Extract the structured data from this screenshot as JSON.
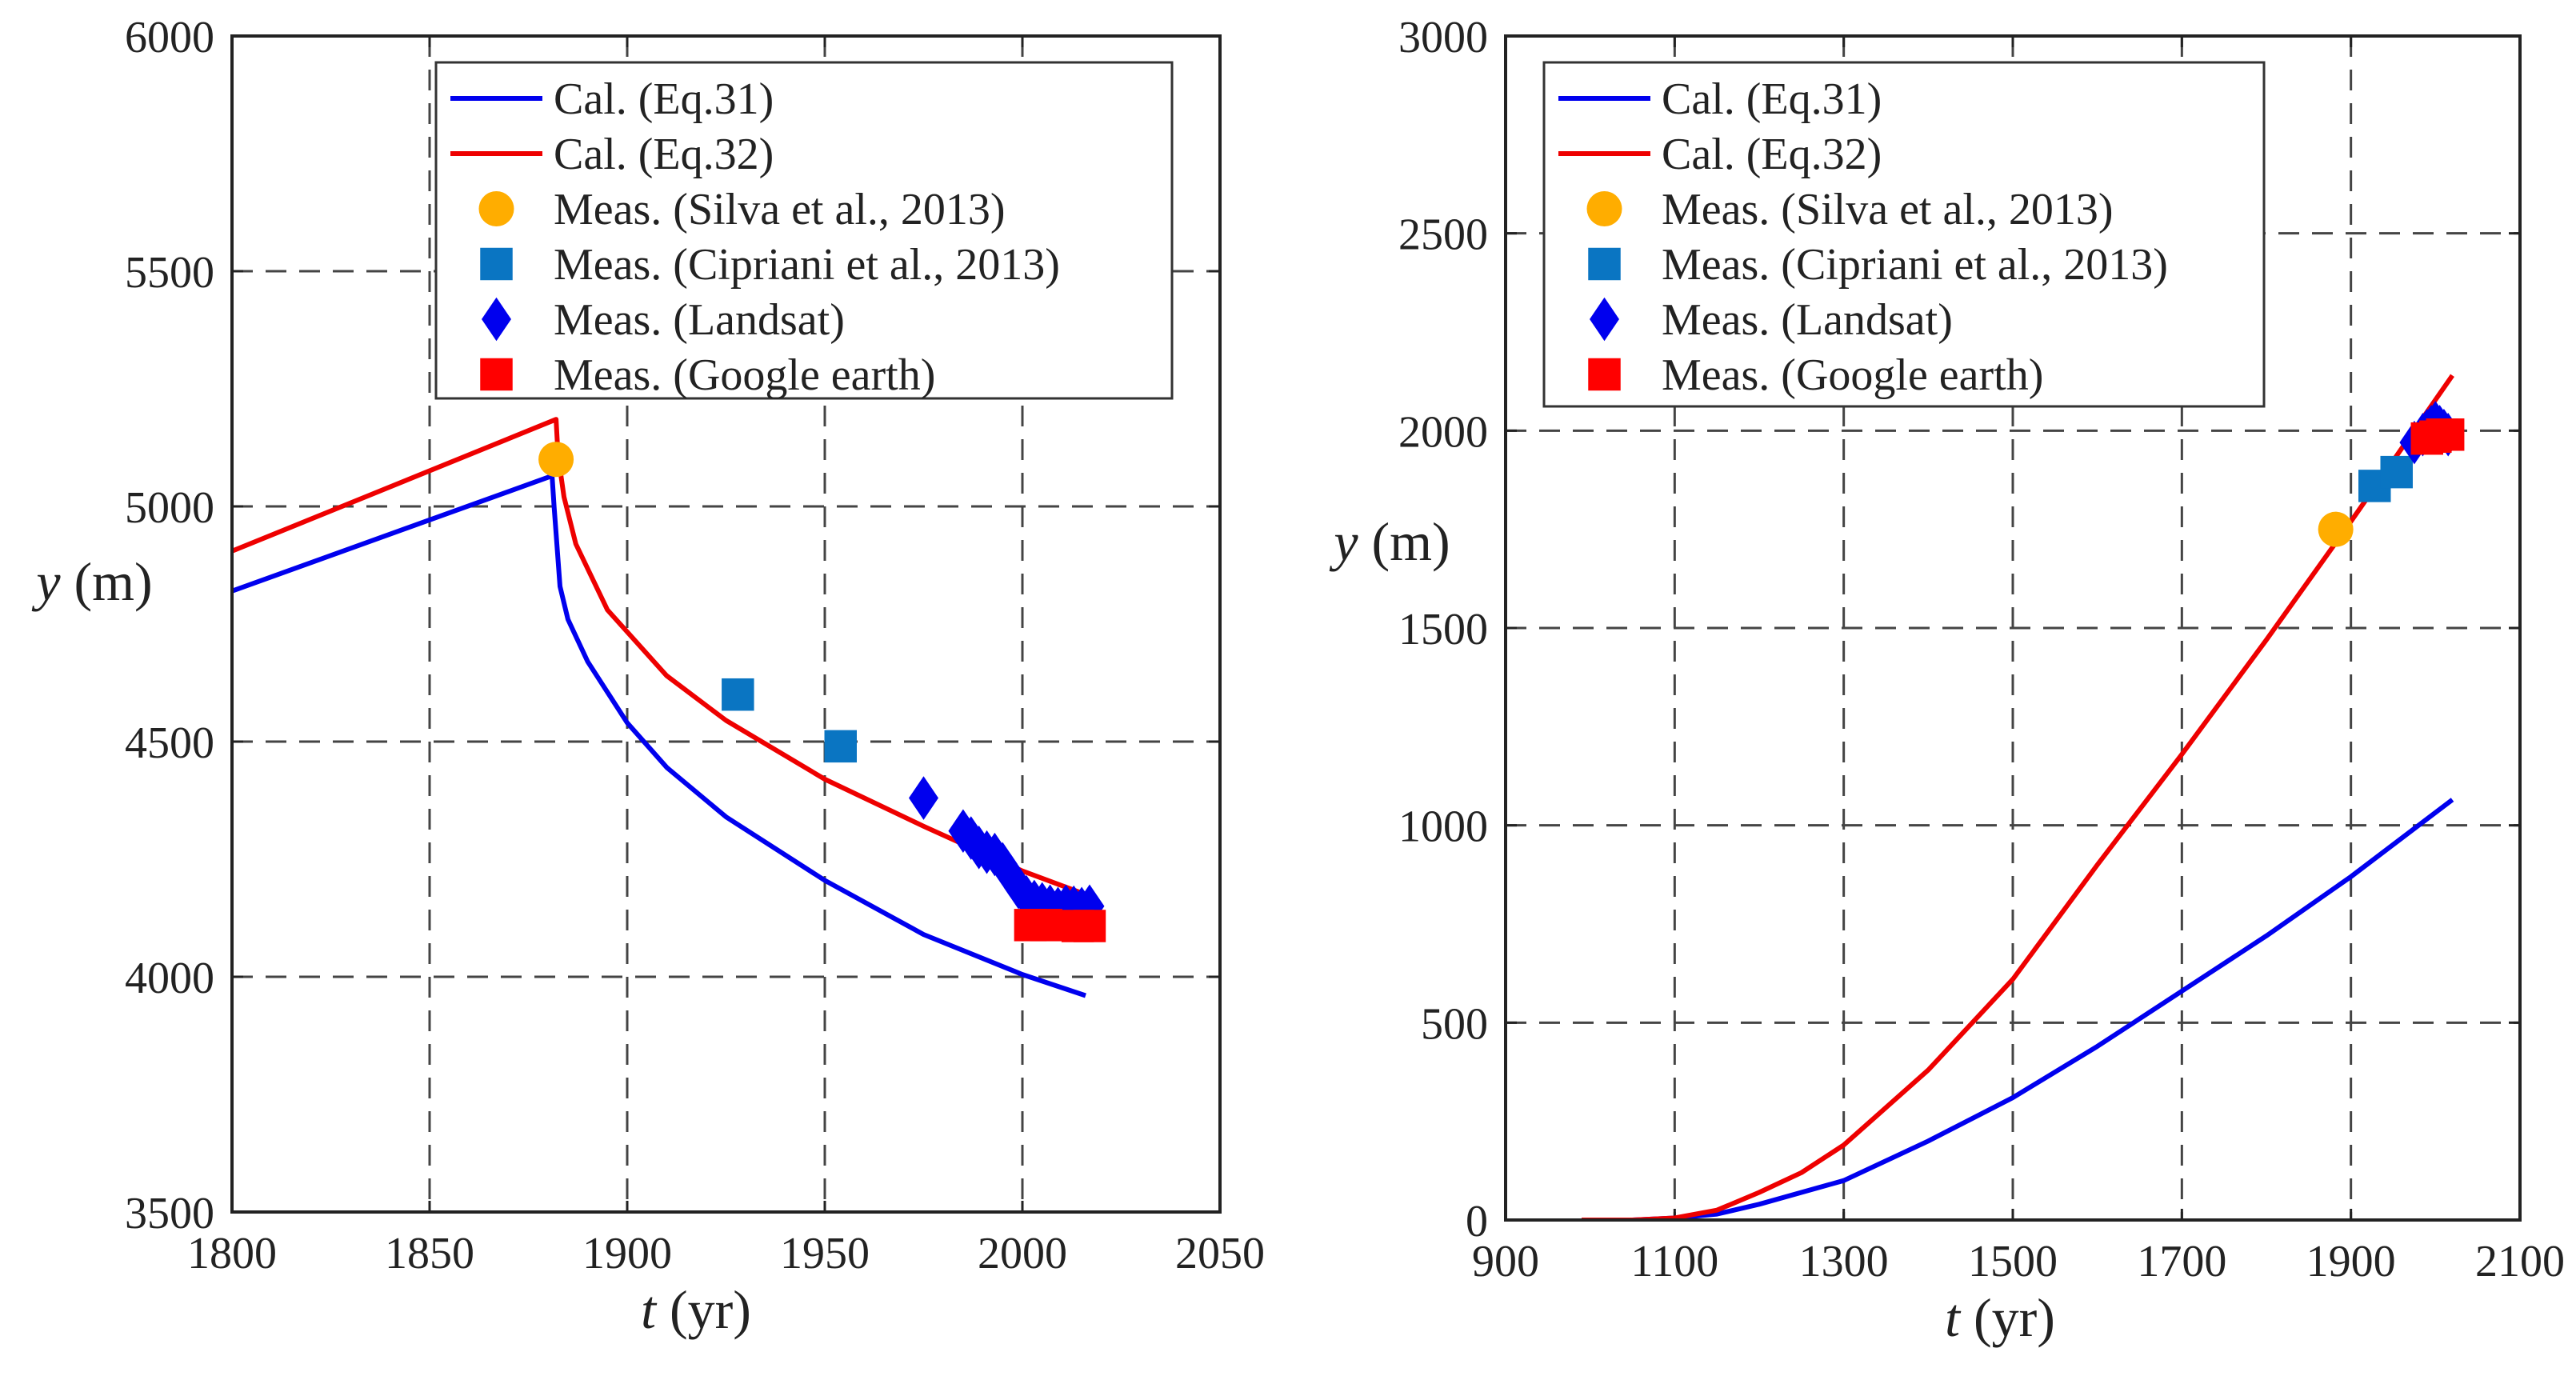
{
  "colors": {
    "eq31": "#0000ee",
    "eq32": "#ee0000",
    "silva": "#ffad00",
    "cipriani": "#0a75c2",
    "landsat": "#0000ee",
    "google": "#ff0000"
  },
  "chart_data": [
    {
      "type": "line",
      "title": "",
      "xlabel_italic": "t",
      "xlabel_unit": " (yr)",
      "ylabel_italic": "y",
      "ylabel_unit": " (m)",
      "xlim": [
        1800,
        2050
      ],
      "ylim": [
        3500,
        6000
      ],
      "xticks": [
        1800,
        1850,
        1900,
        1950,
        2000,
        2050
      ],
      "yticks": [
        3500,
        4000,
        4500,
        5000,
        5500,
        6000
      ],
      "grid": true,
      "legend_position": "top-right",
      "legend": [
        {
          "label": "Cal. (Eq.31)",
          "kind": "line",
          "color_key": "eq31"
        },
        {
          "label": "Cal. (Eq.32)",
          "kind": "line",
          "color_key": "eq32"
        },
        {
          "label": "Meas. (Silva et al., 2013)",
          "kind": "circle",
          "color_key": "silva"
        },
        {
          "label": "Meas. (Cipriani et al., 2013)",
          "kind": "square",
          "color_key": "cipriani"
        },
        {
          "label": "Meas. (Landsat)",
          "kind": "diamond",
          "color_key": "landsat"
        },
        {
          "label": "Meas. (Google earth)",
          "kind": "square",
          "color_key": "google"
        }
      ],
      "series": [
        {
          "name": "Cal. (Eq.31)",
          "kind": "line",
          "color_key": "eq31",
          "x": [
            1800,
            1881,
            1881.5,
            1883,
            1885,
            1890,
            1900,
            1910,
            1925,
            1950,
            1975,
            2000,
            2016
          ],
          "y": [
            4820,
            5065,
            5000,
            4830,
            4760,
            4670,
            4540,
            4445,
            4340,
            4205,
            4090,
            4005,
            3960
          ]
        },
        {
          "name": "Cal. (Eq.32)",
          "kind": "line",
          "color_key": "eq32",
          "x": [
            1800,
            1882,
            1882.5,
            1884,
            1887,
            1895,
            1910,
            1925,
            1950,
            1975,
            2000,
            2016
          ],
          "y": [
            4905,
            5185,
            5110,
            5020,
            4920,
            4780,
            4640,
            4545,
            4420,
            4320,
            4225,
            4175
          ]
        },
        {
          "name": "Meas. (Silva et al., 2013)",
          "kind": "circle",
          "color_key": "silva",
          "x": [
            1882
          ],
          "y": [
            5100
          ]
        },
        {
          "name": "Meas. (Cipriani et al., 2013)",
          "kind": "square",
          "color_key": "cipriani",
          "x": [
            1928,
            1954
          ],
          "y": [
            4600,
            4490
          ]
        },
        {
          "name": "Meas. (Landsat)",
          "kind": "diamond",
          "color_key": "landsat",
          "x": [
            1975,
            1985,
            1987,
            1989,
            1991,
            1993,
            1995,
            1997,
            1999,
            2001,
            2003,
            2005,
            2007,
            2009,
            2011,
            2013,
            2015,
            2017
          ],
          "y": [
            4380,
            4310,
            4295,
            4275,
            4265,
            4260,
            4240,
            4215,
            4190,
            4170,
            4160,
            4155,
            4150,
            4145,
            4150,
            4148,
            4145,
            4150
          ]
        },
        {
          "name": "Meas. (Google earth)",
          "kind": "square",
          "color_key": "google",
          "x": [
            2002,
            2006,
            2014,
            2017
          ],
          "y": [
            4110,
            4110,
            4108,
            4108
          ]
        }
      ]
    },
    {
      "type": "line",
      "title": "",
      "xlabel_italic": "t",
      "xlabel_unit": " (yr)",
      "ylabel_italic": "y",
      "ylabel_unit": " (m)",
      "xlim": [
        900,
        2100
      ],
      "ylim": [
        0,
        3000
      ],
      "xticks": [
        900,
        1100,
        1300,
        1500,
        1700,
        1900,
        2100
      ],
      "yticks": [
        0,
        500,
        1000,
        1500,
        2000,
        2500,
        3000
      ],
      "grid": true,
      "legend_position": "top-left",
      "legend": [
        {
          "label": "Cal. (Eq.31)",
          "kind": "line",
          "color_key": "eq31"
        },
        {
          "label": "Cal. (Eq.32)",
          "kind": "line",
          "color_key": "eq32"
        },
        {
          "label": "Meas. (Silva et al., 2013)",
          "kind": "circle",
          "color_key": "silva"
        },
        {
          "label": "Meas. (Cipriani et al., 2013)",
          "kind": "square",
          "color_key": "cipriani"
        },
        {
          "label": "Meas. (Landsat)",
          "kind": "diamond",
          "color_key": "landsat"
        },
        {
          "label": "Meas. (Google earth)",
          "kind": "square",
          "color_key": "google"
        }
      ],
      "series": [
        {
          "name": "Cal. (Eq.31)",
          "kind": "line",
          "color_key": "eq31",
          "x": [
            990,
            1050,
            1100,
            1150,
            1200,
            1300,
            1400,
            1500,
            1600,
            1700,
            1800,
            1900,
            2020
          ],
          "y": [
            0,
            0,
            5,
            15,
            40,
            100,
            200,
            310,
            440,
            580,
            720,
            870,
            1065
          ]
        },
        {
          "name": "Cal. (Eq.32)",
          "kind": "line",
          "color_key": "eq32",
          "x": [
            990,
            1050,
            1100,
            1150,
            1200,
            1250,
            1300,
            1400,
            1500,
            1600,
            1700,
            1800,
            1900,
            2020
          ],
          "y": [
            0,
            0,
            5,
            25,
            70,
            120,
            190,
            380,
            610,
            900,
            1180,
            1470,
            1770,
            2140
          ]
        },
        {
          "name": "Meas. (Silva et al., 2013)",
          "kind": "circle",
          "color_key": "silva",
          "x": [
            1882
          ],
          "y": [
            1750
          ]
        },
        {
          "name": "Meas. (Cipriani et al., 2013)",
          "kind": "square",
          "color_key": "cipriani",
          "x": [
            1928,
            1954
          ],
          "y": [
            1860,
            1895
          ]
        },
        {
          "name": "Meas. (Landsat)",
          "kind": "diamond",
          "color_key": "landsat",
          "x": [
            1975,
            1985,
            1990,
            1995,
            2000,
            2005,
            2010,
            2015
          ],
          "y": [
            1970,
            1990,
            2000,
            2010,
            2020,
            2010,
            2000,
            1990
          ]
        },
        {
          "name": "Meas. (Google earth)",
          "kind": "square",
          "color_key": "google",
          "x": [
            1990,
            2000,
            2008,
            2015
          ],
          "y": [
            1980,
            1985,
            1990,
            1990
          ]
        }
      ]
    }
  ]
}
